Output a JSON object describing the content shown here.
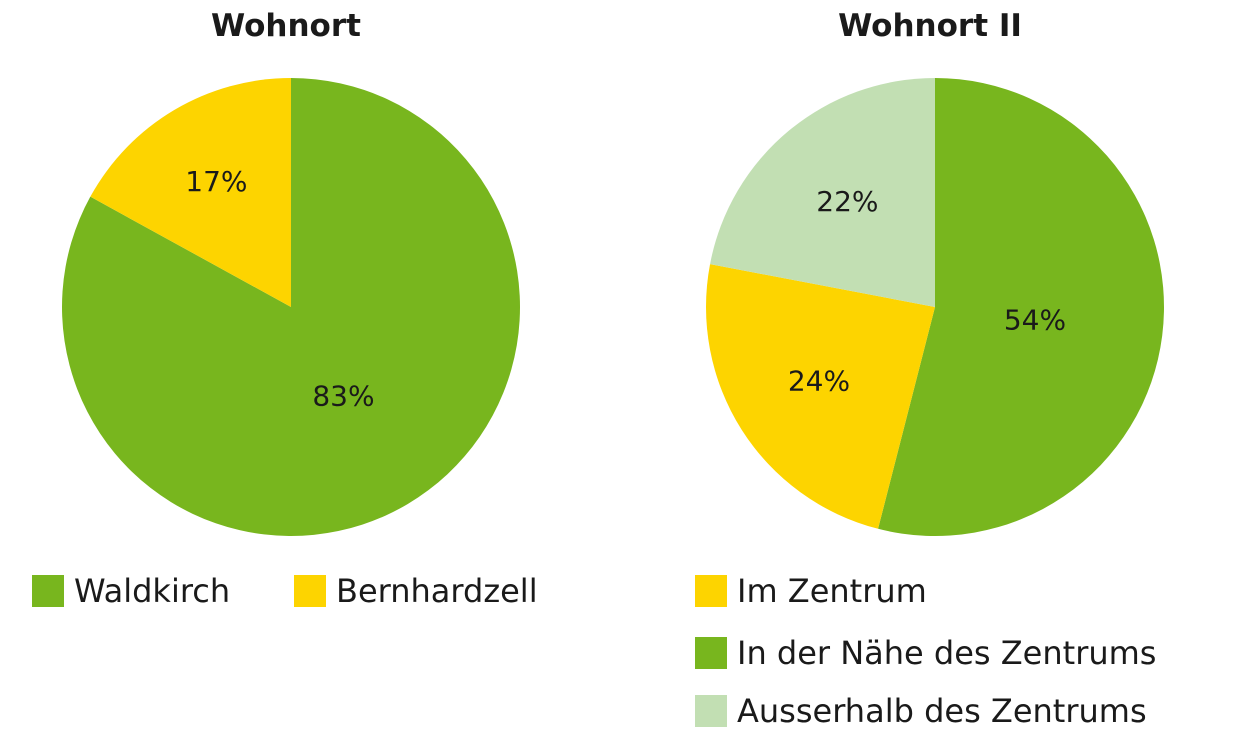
{
  "chart_data": [
    {
      "type": "pie",
      "title": "Wohnort",
      "categories": [
        "Waldkirch",
        "Bernhardzell"
      ],
      "values": [
        83,
        17
      ],
      "labels": [
        "83%",
        "17%"
      ],
      "colors": [
        "#78b61e",
        "#fdd400"
      ],
      "legend_position": "bottom"
    },
    {
      "type": "pie",
      "title": "Wohnort II",
      "categories": [
        "In der Nähe des Zentrums",
        "Im Zentrum",
        "Ausserhalb des Zentrums"
      ],
      "values": [
        54,
        24,
        22
      ],
      "labels": [
        "54%",
        "24%",
        "22%"
      ],
      "colors": [
        "#78b61e",
        "#fdd400",
        "#c2dfb3"
      ],
      "legend_order": [
        "Im Zentrum",
        "In der Nähe des Zentrums",
        "Ausserhalb des Zentrums"
      ],
      "legend_colors": [
        "#fdd400",
        "#78b61e",
        "#c2dfb3"
      ],
      "legend_position": "bottom"
    }
  ]
}
